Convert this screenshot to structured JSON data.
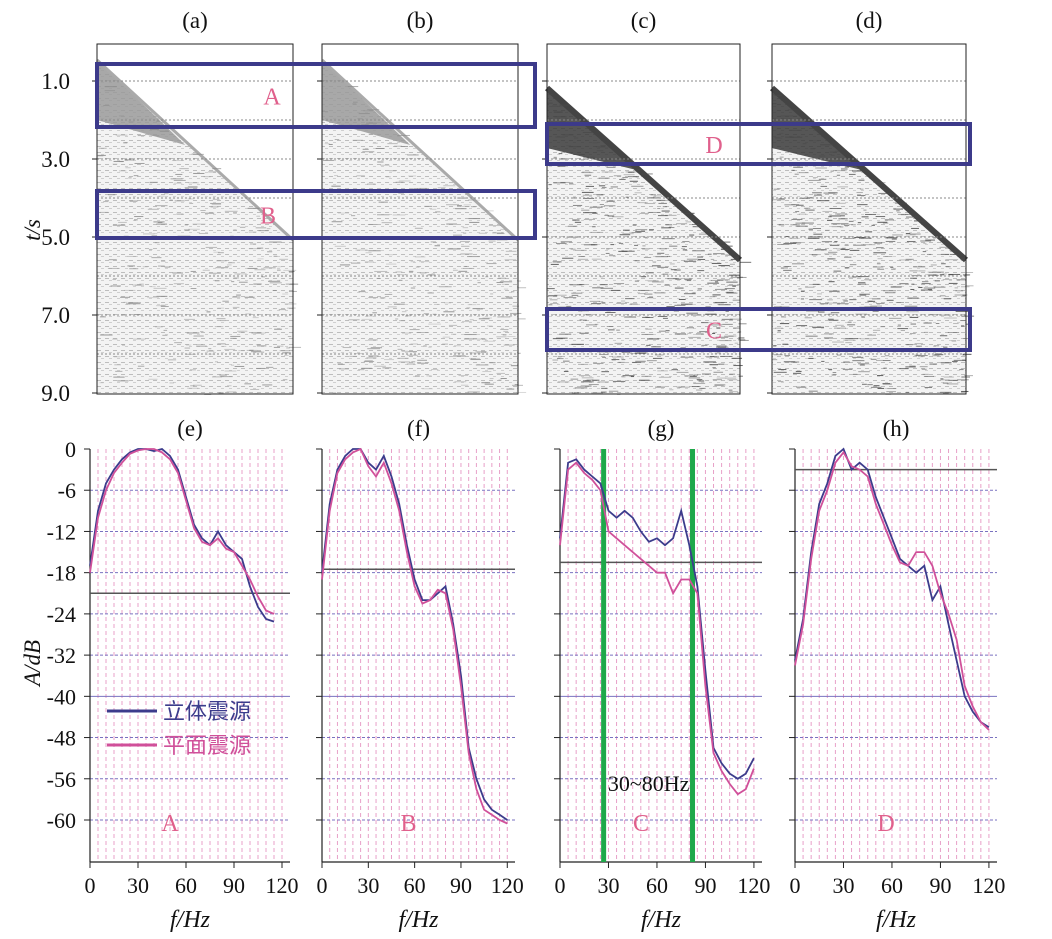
{
  "figure": {
    "seismic_panel_labels": [
      "(a)",
      "(b)",
      "(c)",
      "(d)"
    ],
    "spectrum_panel_labels": [
      "(e)",
      "(f)",
      "(g)",
      "(h)"
    ],
    "seismic_ylabel": "t/s",
    "spectrum_ylabel": "A/dB",
    "spectrum_xlabel": "f/Hz",
    "window_labels": [
      "A",
      "B",
      "D",
      "C"
    ],
    "spectrum_window_labels": [
      "A",
      "B",
      "C",
      "D"
    ],
    "band_annotation": "30~80Hz",
    "colors": {
      "stereo_source": "#3c3c8c",
      "plane_source": "#d0509a",
      "window_box": "#3c3a8a",
      "window_label": "#e0608c",
      "band_marker": "#1fa84a",
      "reference_line": "#555555",
      "grid_minor": "#e8a0c8",
      "grid_horizontal": "#7a72c0"
    }
  },
  "chart_data": [
    {
      "type": "heatmap",
      "panel": "(a)",
      "ylabel": "t/s",
      "yticks": [
        "1.0",
        "3.0",
        "5.0",
        "7.0",
        "9.0"
      ],
      "y_range": [
        0,
        9.0
      ],
      "windows": [
        {
          "label": "A",
          "t_range": [
            0.9,
            2.2
          ]
        },
        {
          "label": "B",
          "t_range": [
            3.9,
            5.1
          ]
        }
      ]
    },
    {
      "type": "heatmap",
      "panel": "(b)",
      "yticks": [
        "1.0",
        "3.0",
        "5.0",
        "7.0",
        "9.0"
      ],
      "y_range": [
        0,
        9.0
      ],
      "windows": [
        {
          "label": "A",
          "t_range": [
            0.9,
            2.2
          ]
        },
        {
          "label": "B",
          "t_range": [
            3.9,
            5.1
          ]
        }
      ]
    },
    {
      "type": "heatmap",
      "panel": "(c)",
      "yticks": [
        "1.0",
        "3.0",
        "5.0",
        "7.0",
        "9.0"
      ],
      "y_range": [
        0,
        9.0
      ],
      "windows": [
        {
          "label": "D",
          "t_range": [
            2.1,
            3.1
          ]
        },
        {
          "label": "C",
          "t_range": [
            6.8,
            7.9
          ]
        }
      ]
    },
    {
      "type": "heatmap",
      "panel": "(d)",
      "yticks": [
        "1.0",
        "3.0",
        "5.0",
        "7.0",
        "9.0"
      ],
      "y_range": [
        0,
        9.0
      ],
      "windows": [
        {
          "label": "D",
          "t_range": [
            2.1,
            3.1
          ]
        },
        {
          "label": "C",
          "t_range": [
            6.8,
            7.9
          ]
        }
      ]
    },
    {
      "type": "line",
      "panel": "(e)",
      "window": "A",
      "xlabel": "f/Hz",
      "ylabel": "A/dB",
      "xticks": [
        "0",
        "30",
        "60",
        "90",
        "120"
      ],
      "yticks": [
        "0",
        "-6",
        "-12",
        "-18",
        "-24",
        "-32",
        "-40",
        "-48",
        "-56",
        "-60"
      ],
      "reference_level": -21,
      "legend": [
        "立体震源",
        "平面震源"
      ],
      "series": [
        {
          "name": "立体震源",
          "x": [
            0,
            5,
            10,
            15,
            20,
            25,
            30,
            35,
            40,
            45,
            50,
            55,
            60,
            65,
            70,
            75,
            80,
            85,
            90,
            95,
            100,
            105,
            110,
            115
          ],
          "y": [
            -17,
            -9,
            -5,
            -3,
            -1.5,
            -0.5,
            0,
            0,
            -0.3,
            0,
            -1,
            -3,
            -7,
            -11,
            -13,
            -14,
            -12,
            -14,
            -15,
            -16,
            -20,
            -23,
            -25,
            -25.5
          ]
        },
        {
          "name": "平面震源",
          "x": [
            0,
            5,
            10,
            15,
            20,
            25,
            30,
            35,
            40,
            45,
            50,
            55,
            60,
            65,
            70,
            75,
            80,
            85,
            90,
            95,
            100,
            105,
            110,
            115
          ],
          "y": [
            -18,
            -10,
            -6,
            -3.5,
            -2,
            -0.7,
            -0.2,
            0,
            0,
            -0.5,
            -1.5,
            -3.5,
            -7.5,
            -11.5,
            -13.5,
            -14,
            -13,
            -14.5,
            -15,
            -17,
            -19,
            -21.5,
            -23.5,
            -24
          ]
        }
      ]
    },
    {
      "type": "line",
      "panel": "(f)",
      "window": "B",
      "xlabel": "f/Hz",
      "xticks": [
        "0",
        "30",
        "60",
        "90",
        "120"
      ],
      "reference_level": -17.5,
      "series": [
        {
          "name": "立体震源",
          "x": [
            0,
            5,
            10,
            15,
            20,
            25,
            30,
            35,
            40,
            45,
            50,
            55,
            60,
            65,
            70,
            75,
            80,
            85,
            90,
            95,
            100,
            105,
            110,
            115,
            120
          ],
          "y": [
            -18,
            -8,
            -3,
            -1,
            0,
            0,
            -2,
            -3,
            -1,
            -4,
            -8,
            -14,
            -19,
            -22,
            -22,
            -21,
            -20,
            -26,
            -36,
            -50,
            -56,
            -58,
            -59,
            -59.5,
            -60
          ]
        },
        {
          "name": "平面震源",
          "x": [
            0,
            5,
            10,
            15,
            20,
            25,
            30,
            35,
            40,
            45,
            50,
            55,
            60,
            65,
            70,
            75,
            80,
            85,
            90,
            95,
            100,
            105,
            110,
            115,
            120
          ],
          "y": [
            -19,
            -9,
            -3.5,
            -1.5,
            -0.5,
            0,
            -2.5,
            -4,
            -2,
            -5,
            -9,
            -15,
            -20,
            -22.5,
            -22,
            -20.5,
            -21,
            -27,
            -38,
            -51,
            -57,
            -59,
            -59.5,
            -60,
            -60.5
          ]
        }
      ]
    },
    {
      "type": "line",
      "panel": "(g)",
      "window": "C",
      "xlabel": "f/Hz",
      "xticks": [
        "0",
        "30",
        "60",
        "90",
        "120"
      ],
      "reference_level": -16.5,
      "band": [
        27,
        82
      ],
      "annotation": "30~80Hz",
      "series": [
        {
          "name": "立体震源",
          "x": [
            0,
            5,
            10,
            15,
            20,
            25,
            30,
            35,
            40,
            45,
            50,
            55,
            60,
            65,
            70,
            75,
            80,
            85,
            90,
            95,
            100,
            105,
            110,
            115,
            120
          ],
          "y": [
            -13,
            -2,
            -1.5,
            -3,
            -4,
            -5,
            -9,
            -10,
            -9,
            -10,
            -12,
            -13.5,
            -13,
            -14,
            -13,
            -9,
            -14,
            -20,
            -35,
            -50,
            -53,
            -55,
            -56,
            -55,
            -52
          ]
        },
        {
          "name": "平面震源",
          "x": [
            0,
            5,
            10,
            15,
            20,
            25,
            30,
            35,
            40,
            45,
            50,
            55,
            60,
            65,
            70,
            75,
            80,
            85,
            90,
            95,
            100,
            105,
            110,
            115,
            120
          ],
          "y": [
            -14,
            -3,
            -2,
            -3.5,
            -4.5,
            -6,
            -12,
            -13,
            -14,
            -15,
            -16,
            -17,
            -18,
            -18,
            -21,
            -19,
            -19,
            -21,
            -38,
            -51,
            -54.5,
            -56.5,
            -57.5,
            -57,
            -54
          ]
        }
      ]
    },
    {
      "type": "line",
      "panel": "(h)",
      "window": "D",
      "xlabel": "f/Hz",
      "xticks": [
        "0",
        "30",
        "60",
        "90",
        "120"
      ],
      "reference_level": -3,
      "series": [
        {
          "name": "立体震源",
          "x": [
            0,
            5,
            10,
            15,
            20,
            25,
            30,
            35,
            40,
            45,
            50,
            55,
            60,
            65,
            70,
            75,
            80,
            85,
            90,
            95,
            100,
            105,
            110,
            115,
            120
          ],
          "y": [
            -33,
            -25,
            -15,
            -8,
            -5,
            -1,
            0,
            -3,
            -2,
            -3,
            -7,
            -10,
            -13,
            -16,
            -17,
            -18,
            -17,
            -22,
            -20,
            -26,
            -33,
            -40,
            -43,
            -45,
            -46
          ]
        },
        {
          "name": "平面震源",
          "x": [
            0,
            5,
            10,
            15,
            20,
            25,
            30,
            35,
            40,
            45,
            50,
            55,
            60,
            65,
            70,
            75,
            80,
            85,
            90,
            95,
            100,
            105,
            110,
            115,
            120
          ],
          "y": [
            -34,
            -26,
            -16,
            -9,
            -6,
            -2,
            -0.5,
            -2.5,
            -3,
            -4,
            -8,
            -11,
            -14,
            -16.5,
            -17,
            -15,
            -15,
            -17,
            -21,
            -24,
            -29,
            -38,
            -42,
            -45,
            -46.5
          ]
        }
      ]
    }
  ]
}
